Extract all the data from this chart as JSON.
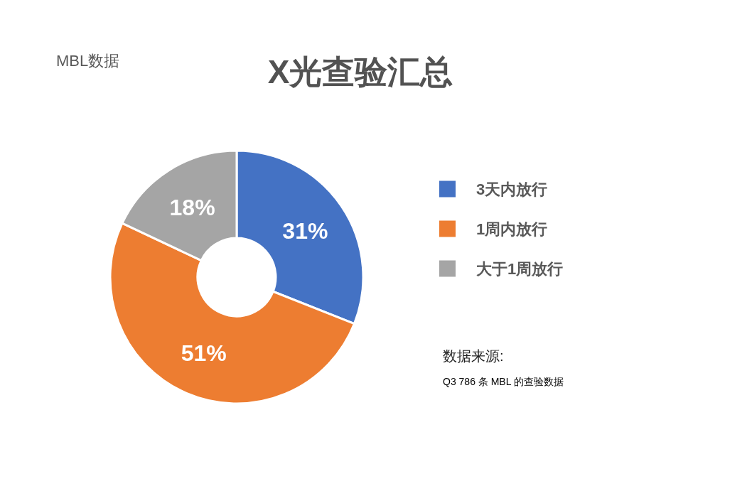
{
  "chart_data": {
    "type": "donut",
    "title": "X光查验汇总",
    "subtitle": "MBL数据",
    "categories": [
      "3天内放行",
      "1周内放行",
      "大于1周放行"
    ],
    "values": [
      31,
      51,
      18
    ],
    "value_labels": [
      "31%",
      "51%",
      "18%"
    ],
    "colors": [
      "#4472c4",
      "#ed7d31",
      "#a5a5a5"
    ],
    "legend": "right",
    "annotations": [
      "数据来源:",
      "Q3 786 条 MBL 的查验数据"
    ]
  }
}
